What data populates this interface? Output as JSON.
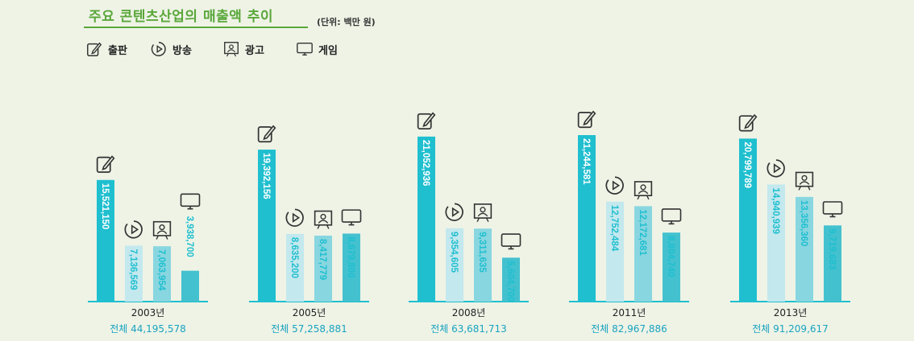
{
  "title": "주요 콘텐츠산업의 매출액 추이",
  "unit": "(단위: 백만 원)",
  "legend": [
    {
      "name": "출판",
      "icon": "publishing-pen-icon"
    },
    {
      "name": "방송",
      "icon": "broadcast-play-icon"
    },
    {
      "name": "광고",
      "icon": "advertising-board-icon"
    },
    {
      "name": "게임",
      "icon": "game-monitor-icon"
    }
  ],
  "colors": {
    "출판": "#1fbfcf",
    "방송": "#c3e8ee",
    "광고": "#88d6e0",
    "게임": "#44c1cf",
    "text_dark": "#222222",
    "total_text": "#1aa3c0",
    "axis": "#1fbfcf",
    "label_light": "#1fbfcf",
    "label_on_dark": "#ffffff"
  },
  "chart_data": {
    "type": "bar",
    "title": "주요 콘텐츠산업의 매출액 추이",
    "ylabel": "(단위: 백만 원)",
    "categories": [
      "2003년",
      "2005년",
      "2008년",
      "2011년",
      "2013년"
    ],
    "series": [
      {
        "name": "출판",
        "values": [
          15521150,
          19392156,
          21052936,
          21244581,
          20799789
        ],
        "labels": [
          "15,521,150",
          "19,392,156",
          "21,052,936",
          "21,244,581",
          "20,799,789"
        ]
      },
      {
        "name": "방송",
        "values": [
          7136569,
          8635200,
          9354605,
          12752484,
          14940939
        ],
        "labels": [
          "7,136,569",
          "8,635,200",
          "9,354,605",
          "12,752,484",
          "14,940,939"
        ]
      },
      {
        "name": "광고",
        "values": [
          7063954,
          8417779,
          9311635,
          12172681,
          13356360
        ],
        "labels": [
          "7,063,954",
          "8,417,779",
          "9,311,635",
          "12,172,681",
          "13,356,360"
        ]
      },
      {
        "name": "게임",
        "values": [
          3938700,
          8679800,
          5604700,
          8804740,
          9719683
        ],
        "labels": [
          "3,938,700",
          "8,679,800",
          "5,604,700",
          "8,804,740",
          "9,719,683"
        ]
      }
    ],
    "totals": [
      "전체 44,195,578",
      "전체 57,258,881",
      "전체 63,681,713",
      "전체 82,967,886",
      "전체 91,209,617"
    ],
    "ylim": [
      0,
      21244581
    ],
    "legend_position": "top-left"
  }
}
